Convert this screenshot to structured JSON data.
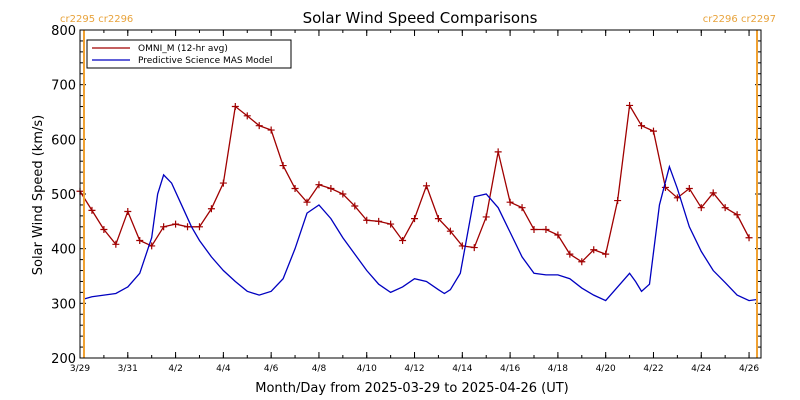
{
  "chart_data": {
    "type": "line",
    "title": "Solar Wind Speed Comparisons",
    "xlabel": "Month/Day from 2025-03-29 to 2025-04-26 (UT)",
    "ylabel": "Solar Wind Speed (km/s)",
    "xlim": [
      "2025-03-29",
      "2025-04-26T12:00"
    ],
    "ylim": [
      200,
      800
    ],
    "yticks": [
      200,
      300,
      400,
      500,
      600,
      700,
      800
    ],
    "xticks": [
      {
        "date": "2025-03-29",
        "label": "3/29"
      },
      {
        "date": "2025-03-31",
        "label": "3/31"
      },
      {
        "date": "2025-04-02",
        "label": "4/2"
      },
      {
        "date": "2025-04-04",
        "label": "4/4"
      },
      {
        "date": "2025-04-06",
        "label": "4/6"
      },
      {
        "date": "2025-04-08",
        "label": "4/8"
      },
      {
        "date": "2025-04-10",
        "label": "4/10"
      },
      {
        "date": "2025-04-12",
        "label": "4/12"
      },
      {
        "date": "2025-04-14",
        "label": "4/14"
      },
      {
        "date": "2025-04-16",
        "label": "4/16"
      },
      {
        "date": "2025-04-18",
        "label": "4/18"
      },
      {
        "date": "2025-04-20",
        "label": "4/20"
      },
      {
        "date": "2025-04-22",
        "label": "4/22"
      },
      {
        "date": "2025-04-24",
        "label": "4/24"
      },
      {
        "date": "2025-04-26",
        "label": "4/26"
      }
    ],
    "markers": [
      {
        "date": "2025-03-29T04:00",
        "label": "cr2295 cr2296",
        "side": "left"
      },
      {
        "date": "2025-04-26T08:00",
        "label": "cr2296 cr2297",
        "side": "right"
      }
    ],
    "marker_color": "#f0a030",
    "legend": "top-left",
    "series": [
      {
        "name": "OMNI_M (12-hr avg)",
        "color": "#a00000",
        "marker": "plus",
        "x": [
          "2025-03-29T00:00",
          "2025-03-29T12:00",
          "2025-03-30T00:00",
          "2025-03-30T12:00",
          "2025-03-31T00:00",
          "2025-03-31T12:00",
          "2025-04-01T00:00",
          "2025-04-01T12:00",
          "2025-04-02T00:00",
          "2025-04-02T12:00",
          "2025-04-03T00:00",
          "2025-04-03T12:00",
          "2025-04-04T00:00",
          "2025-04-04T12:00",
          "2025-04-05T00:00",
          "2025-04-05T12:00",
          "2025-04-06T00:00",
          "2025-04-06T12:00",
          "2025-04-07T00:00",
          "2025-04-07T12:00",
          "2025-04-08T00:00",
          "2025-04-08T12:00",
          "2025-04-09T00:00",
          "2025-04-09T12:00",
          "2025-04-10T00:00",
          "2025-04-10T12:00",
          "2025-04-11T00:00",
          "2025-04-11T12:00",
          "2025-04-12T00:00",
          "2025-04-12T12:00",
          "2025-04-13T00:00",
          "2025-04-13T12:00",
          "2025-04-14T00:00",
          "2025-04-14T12:00",
          "2025-04-15T00:00",
          "2025-04-15T12:00",
          "2025-04-16T00:00",
          "2025-04-16T12:00",
          "2025-04-17T00:00",
          "2025-04-17T12:00",
          "2025-04-18T00:00",
          "2025-04-18T12:00",
          "2025-04-19T00:00",
          "2025-04-19T12:00",
          "2025-04-20T00:00",
          "2025-04-20T12:00",
          "2025-04-21T00:00",
          "2025-04-21T12:00",
          "2025-04-22T00:00",
          "2025-04-22T12:00",
          "2025-04-23T00:00",
          "2025-04-23T12:00",
          "2025-04-24T00:00",
          "2025-04-24T12:00",
          "2025-04-25T00:00",
          "2025-04-25T12:00",
          "2025-04-26T00:00"
        ],
        "values": [
          505,
          470,
          435,
          408,
          468,
          415,
          405,
          440,
          445,
          440,
          440,
          473,
          520,
          660,
          643,
          625,
          617,
          552,
          510,
          485,
          517,
          510,
          500,
          478,
          452,
          450,
          445,
          415,
          455,
          515,
          455,
          432,
          405,
          402,
          458,
          577,
          485,
          475,
          435,
          435,
          425,
          390,
          376,
          398,
          390,
          488,
          662,
          625,
          615,
          512,
          493,
          510,
          475,
          502,
          475,
          462,
          420
        ]
      },
      {
        "name": "Predictive Science MAS Model",
        "color": "#0000c0",
        "marker": "none",
        "x": [
          "2025-03-29T04:00",
          "2025-03-29T12:00",
          "2025-03-30T00:00",
          "2025-03-30T12:00",
          "2025-03-31T00:00",
          "2025-03-31T12:00",
          "2025-04-01T00:00",
          "2025-04-01T06:00",
          "2025-04-01T12:00",
          "2025-04-01T20:00",
          "2025-04-02T06:00",
          "2025-04-02T16:00",
          "2025-04-03T00:00",
          "2025-04-03T12:00",
          "2025-04-04T00:00",
          "2025-04-04T12:00",
          "2025-04-05T00:00",
          "2025-04-05T12:00",
          "2025-04-06T00:00",
          "2025-04-06T12:00",
          "2025-04-07T00:00",
          "2025-04-07T12:00",
          "2025-04-08T00:00",
          "2025-04-08T12:00",
          "2025-04-09T00:00",
          "2025-04-09T12:00",
          "2025-04-10T00:00",
          "2025-04-10T12:00",
          "2025-04-11T00:00",
          "2025-04-11T12:00",
          "2025-04-12T00:00",
          "2025-04-12T12:00",
          "2025-04-13T00:00",
          "2025-04-13T06:00",
          "2025-04-13T12:00",
          "2025-04-13T22:00",
          "2025-04-14T12:00",
          "2025-04-15T00:00",
          "2025-04-15T12:00",
          "2025-04-16T00:00",
          "2025-04-16T12:00",
          "2025-04-17T00:00",
          "2025-04-17T12:00",
          "2025-04-18T00:00",
          "2025-04-18T12:00",
          "2025-04-19T00:00",
          "2025-04-19T12:00",
          "2025-04-20T00:00",
          "2025-04-20T12:00",
          "2025-04-21T00:00",
          "2025-04-21T06:00",
          "2025-04-21T12:00",
          "2025-04-21T20:00",
          "2025-04-22T06:00",
          "2025-04-22T16:00",
          "2025-04-23T00:00",
          "2025-04-23T12:00",
          "2025-04-24T00:00",
          "2025-04-24T12:00",
          "2025-04-25T00:00",
          "2025-04-25T12:00",
          "2025-04-26T00:00",
          "2025-04-26T08:00"
        ],
        "values": [
          308,
          312,
          315,
          318,
          330,
          355,
          420,
          500,
          535,
          520,
          480,
          440,
          415,
          385,
          360,
          340,
          322,
          315,
          322,
          345,
          400,
          465,
          480,
          455,
          420,
          390,
          360,
          335,
          320,
          330,
          345,
          340,
          325,
          318,
          325,
          355,
          495,
          500,
          475,
          430,
          385,
          355,
          352,
          352,
          345,
          328,
          315,
          305,
          330,
          355,
          340,
          322,
          335,
          480,
          550,
          510,
          440,
          395,
          360,
          338,
          315,
          305,
          307
        ]
      }
    ]
  }
}
